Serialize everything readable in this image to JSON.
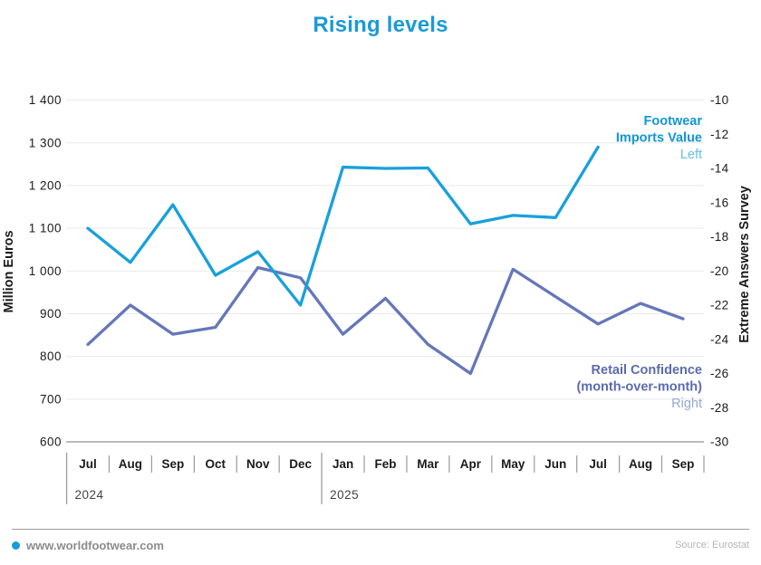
{
  "title": "Rising levels",
  "colors": {
    "title": "#1b9ad8",
    "grid": "#e9e9e9",
    "baseline": "#b0b0b0",
    "tick_text": "#1a1a1a",
    "tick_mark": "#9b9b9b",
    "year_text": "#444444",
    "footwear_label": "#1295d6",
    "footwear_axis_tag": "#63c1ea",
    "retail_label": "#5a6bb0",
    "retail_axis_tag": "#98a6d4",
    "brand_dot": "#1b9ad8"
  },
  "chart_data": {
    "type": "line",
    "title": "Rising levels",
    "grid": "horizontal",
    "x": [
      "Jul",
      "Aug",
      "Sep",
      "Oct",
      "Nov",
      "Dec",
      "Jan",
      "Feb",
      "Mar",
      "Apr",
      "May",
      "Jun",
      "Jul",
      "Aug",
      "Sep"
    ],
    "year_groups": [
      {
        "label": "2024",
        "start_index": 0
      },
      {
        "label": "2025",
        "start_index": 6
      }
    ],
    "left_axis": {
      "title": "Million Euros",
      "min": 600,
      "max": 1400,
      "step": 100,
      "tick_labels": [
        "1 400",
        "1 300",
        "1 200",
        "1 100",
        "1 000",
        "900",
        "800",
        "700",
        "600"
      ]
    },
    "right_axis": {
      "title": "Extreme Answers Survey",
      "min": -30,
      "max": -10,
      "step": 2,
      "tick_labels": [
        "-10",
        "-12",
        "-14",
        "-16",
        "-18",
        "-20",
        "-22",
        "-24",
        "-26",
        "-28",
        "-30"
      ]
    },
    "series": [
      {
        "name": "Retail Confidence (month-over-month)",
        "axis": "right",
        "color": "#6577b9",
        "label_lines": [
          "Retail Confidence",
          "(month-over-month)"
        ],
        "axis_tag": "Right",
        "values": [
          -24.3,
          -22.0,
          -23.7,
          -23.3,
          -19.8,
          -20.4,
          -23.7,
          -21.6,
          -24.3,
          -26.0,
          -19.9,
          -21.5,
          -23.1,
          -21.9,
          -22.8
        ]
      },
      {
        "name": "Footwear Imports Value",
        "axis": "left",
        "color": "#18a0dc",
        "label_lines": [
          "Footwear",
          "Imports Value"
        ],
        "axis_tag": "Left",
        "values": [
          1100,
          1020,
          1155,
          990,
          1045,
          920,
          1243,
          1240,
          1241,
          1110,
          1130,
          1125,
          1290
        ]
      }
    ]
  },
  "footer": {
    "site": "www.worldfootwear.com",
    "source": "Source: Eurostat"
  }
}
